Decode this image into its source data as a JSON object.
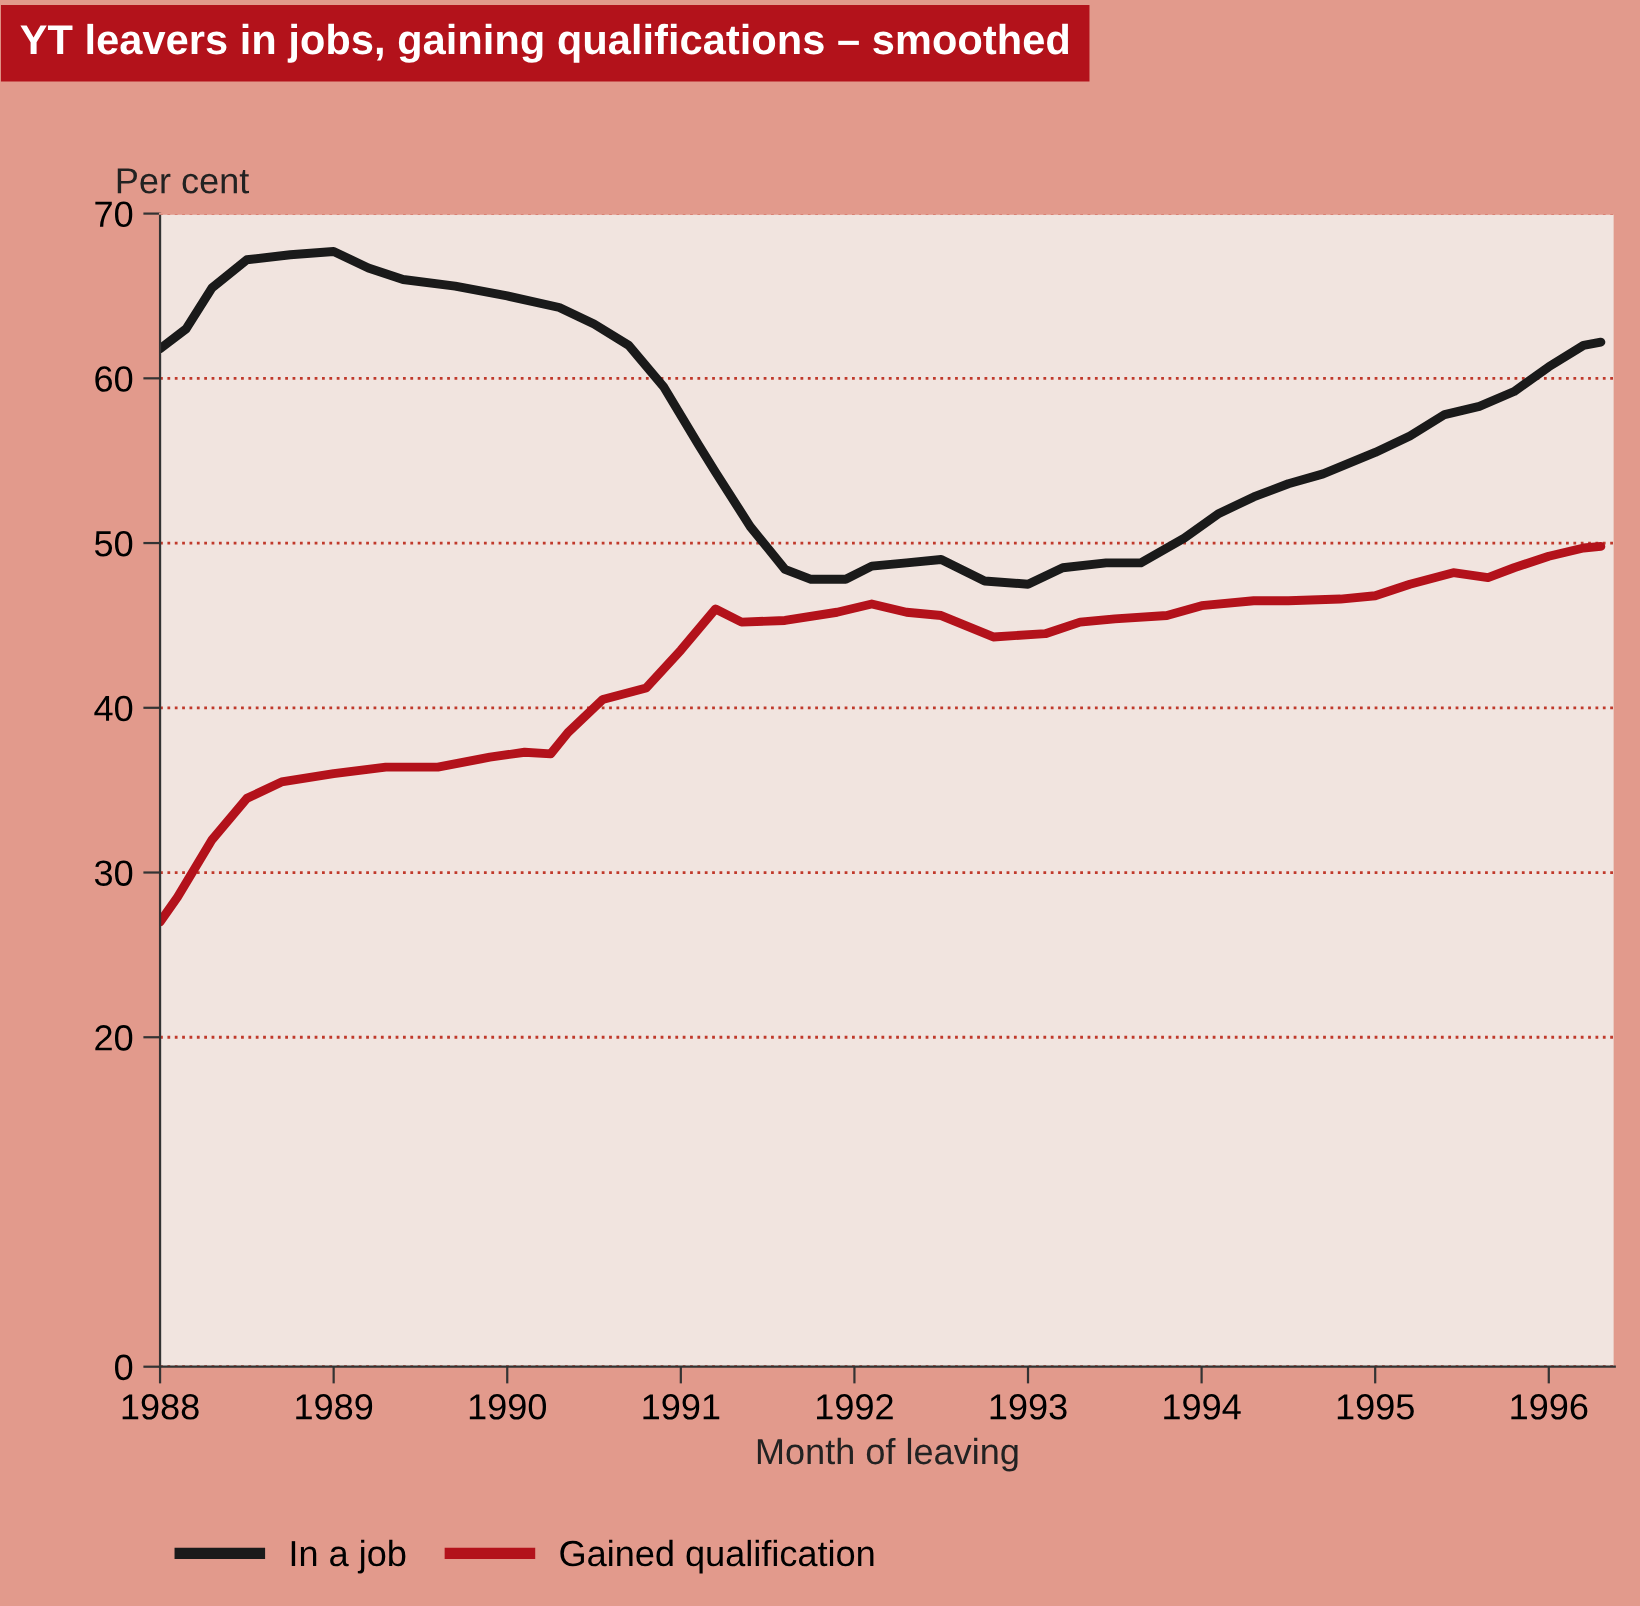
{
  "chart_data": {
    "type": "line",
    "title": "YT leavers in jobs, gaining qualifications – smoothed",
    "ylabel": "Per cent",
    "xlabel": "Month of leaving",
    "xlim": [
      1988,
      1996.38
    ],
    "xticks": [
      1988,
      1989,
      1990,
      1991,
      1992,
      1993,
      1994,
      1995,
      1996
    ],
    "ylim": [
      0,
      70
    ],
    "yticks": [
      0,
      20,
      30,
      40,
      50,
      60,
      70
    ],
    "grid": "y",
    "legend": "bottom left",
    "line_style": "solid",
    "marker": "none",
    "series": [
      {
        "name": "In a job",
        "color": "#1a1a1a",
        "x": [
          1988.0,
          1988.15,
          1988.3,
          1988.5,
          1988.75,
          1989.0,
          1989.2,
          1989.4,
          1989.7,
          1990.0,
          1990.3,
          1990.5,
          1990.7,
          1990.9,
          1991.1,
          1991.2,
          1991.4,
          1991.6,
          1991.75,
          1991.95,
          1992.1,
          1992.3,
          1992.5,
          1992.75,
          1993.0,
          1993.2,
          1993.45,
          1993.65,
          1993.9,
          1994.1,
          1994.3,
          1994.5,
          1994.7,
          1995.0,
          1995.2,
          1995.4,
          1995.6,
          1995.8,
          1996.0,
          1996.2,
          1996.3
        ],
        "values": [
          61.8,
          63,
          65.5,
          67.2,
          67.5,
          67.7,
          66.7,
          66,
          65.6,
          65,
          64.3,
          63.3,
          62,
          59.5,
          56,
          54.3,
          51,
          48.4,
          47.8,
          47.8,
          48.6,
          48.8,
          49,
          47.7,
          47.5,
          48.5,
          48.8,
          48.8,
          50.3,
          51.8,
          52.8,
          53.6,
          54.2,
          55.5,
          56.5,
          57.8,
          58.3,
          59.2,
          60.7,
          62,
          62.2
        ]
      },
      {
        "name": "Gained qualification",
        "color": "#b3121b",
        "x": [
          1988.0,
          1988.1,
          1988.3,
          1988.5,
          1988.7,
          1989.0,
          1989.3,
          1989.6,
          1989.9,
          1990.1,
          1990.25,
          1990.35,
          1990.55,
          1990.8,
          1991.0,
          1991.2,
          1991.35,
          1991.6,
          1991.9,
          1992.1,
          1992.3,
          1992.5,
          1992.8,
          1993.1,
          1993.3,
          1993.5,
          1993.8,
          1994.0,
          1994.3,
          1994.5,
          1994.8,
          1995.0,
          1995.2,
          1995.45,
          1995.65,
          1995.8,
          1996.0,
          1996.2,
          1996.3
        ],
        "values": [
          27,
          28.5,
          32,
          34.5,
          35.5,
          36,
          36.4,
          36.4,
          37,
          37.3,
          37.2,
          38.5,
          40.5,
          41.2,
          43.5,
          46,
          45.2,
          45.3,
          45.8,
          46.3,
          45.8,
          45.6,
          44.3,
          44.5,
          45.2,
          45.4,
          45.6,
          46.2,
          46.5,
          46.5,
          46.6,
          46.8,
          47.5,
          48.2,
          47.9,
          48.5,
          49.2,
          49.7,
          49.8
        ]
      }
    ]
  }
}
